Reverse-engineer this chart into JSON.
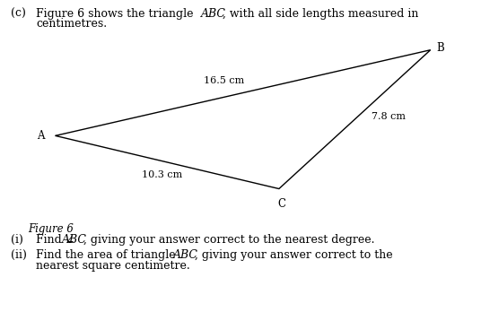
{
  "label_A": "A",
  "label_B": "B",
  "label_C": "C",
  "side_AB_label": "16.5 cm",
  "side_AC_label": "10.3 cm",
  "side_BC_label": "7.8 cm",
  "triangle_color": "#000000",
  "background_color": "#ffffff",
  "text_color": "#000000",
  "line_width": 1.0,
  "A": [
    0.115,
    0.565
  ],
  "B": [
    0.895,
    0.84
  ],
  "C": [
    0.58,
    0.395
  ]
}
